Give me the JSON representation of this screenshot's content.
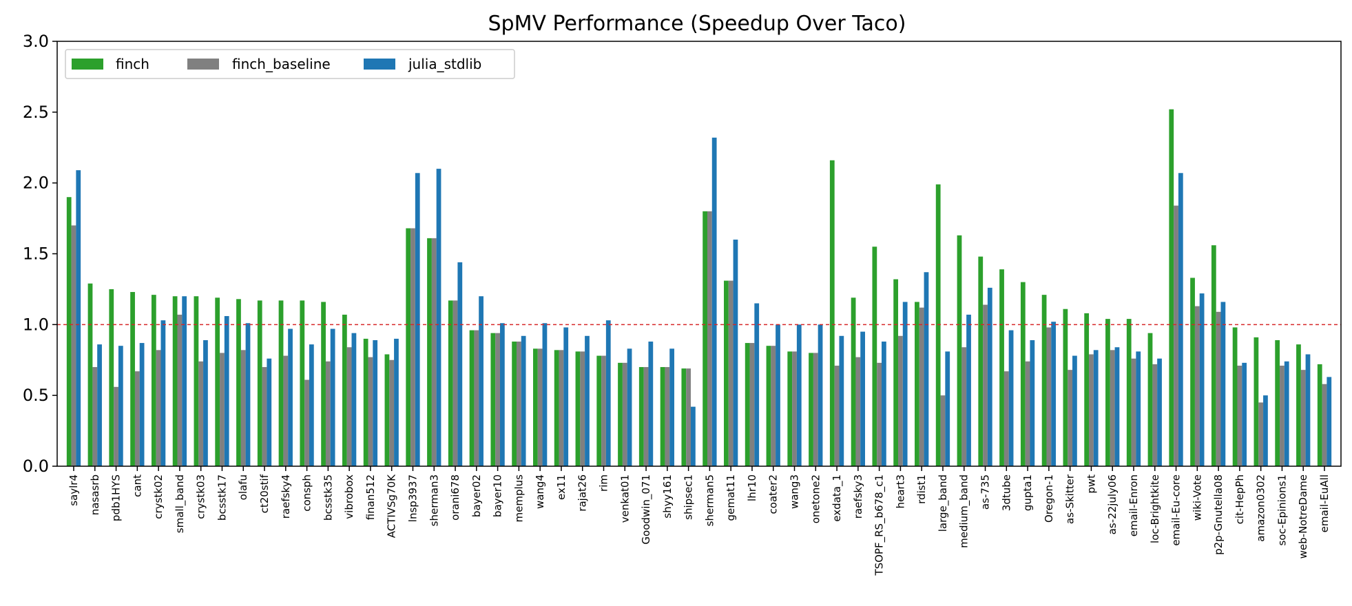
{
  "chart_data": {
    "type": "bar",
    "title": "SpMV Performance (Speedup Over Taco)",
    "xlabel": "",
    "ylabel": "",
    "ylim": [
      0,
      3.0
    ],
    "yticks": [
      "0.0",
      "0.5",
      "1.0",
      "1.5",
      "2.0",
      "2.5",
      "3.0"
    ],
    "reference_line": 1.0,
    "legend_position": "top-left",
    "grid": false,
    "categories": [
      "saylr4",
      "nasasrb",
      "pdb1HYS",
      "cant",
      "crystk02",
      "small_band",
      "crystk03",
      "bcsstk17",
      "olafu",
      "ct20stif",
      "raefsky4",
      "consph",
      "bcsstk35",
      "vibrobox",
      "finan512",
      "ACTIVSg70K",
      "lnsp3937",
      "sherman3",
      "orani678",
      "bayer02",
      "bayer10",
      "memplus",
      "wang4",
      "ex11",
      "rajat26",
      "rim",
      "venkat01",
      "Goodwin_071",
      "shyy161",
      "shipsec1",
      "sherman5",
      "gemat11",
      "lhr10",
      "coater2",
      "wang3",
      "onetone2",
      "exdata_1",
      "raefsky3",
      "TSOPF_RS_b678_c1",
      "heart3",
      "rdist1",
      "large_band",
      "medium_band",
      "as-735",
      "3dtube",
      "gupta1",
      "Oregon-1",
      "as-Skitter",
      "pwt",
      "as-22july06",
      "email-Enron",
      "loc-Brightkite",
      "email-Eu-core",
      "wiki-Vote",
      "p2p-Gnutella08",
      "cit-HepPh",
      "amazon0302",
      "soc-Epinions1",
      "web-NotreDame",
      "email-EuAll"
    ],
    "series": [
      {
        "name": "finch",
        "color": "#2ca02c",
        "values": [
          1.9,
          1.29,
          1.25,
          1.23,
          1.21,
          1.2,
          1.2,
          1.19,
          1.18,
          1.17,
          1.17,
          1.17,
          1.16,
          1.07,
          0.9,
          0.79,
          1.68,
          1.61,
          1.17,
          0.96,
          0.94,
          0.88,
          0.83,
          0.82,
          0.81,
          0.78,
          0.73,
          0.7,
          0.7,
          0.69,
          1.8,
          1.31,
          0.87,
          0.85,
          0.81,
          0.8,
          2.16,
          1.19,
          1.55,
          1.32,
          1.16,
          1.99,
          1.63,
          1.48,
          1.39,
          1.3,
          1.21,
          1.11,
          1.08,
          1.04,
          1.04,
          0.94,
          2.52,
          1.33,
          1.56,
          0.98,
          0.91,
          0.89,
          0.86,
          0.72
        ]
      },
      {
        "name": "finch_baseline",
        "color": "#808080",
        "values": [
          1.7,
          0.7,
          0.56,
          0.67,
          0.82,
          1.07,
          0.74,
          0.8,
          0.82,
          0.7,
          0.78,
          0.61,
          0.74,
          0.84,
          0.77,
          0.75,
          1.68,
          1.61,
          1.17,
          0.96,
          0.94,
          0.88,
          0.83,
          0.82,
          0.81,
          0.78,
          0.73,
          0.7,
          0.7,
          0.69,
          1.8,
          1.31,
          0.87,
          0.85,
          0.81,
          0.8,
          0.71,
          0.77,
          0.73,
          0.92,
          1.12,
          0.5,
          0.84,
          1.14,
          0.67,
          0.74,
          0.98,
          0.68,
          0.79,
          0.82,
          0.76,
          0.72,
          1.84,
          1.13,
          1.09,
          0.71,
          0.45,
          0.71,
          0.68,
          0.58
        ]
      },
      {
        "name": "julia_stdlib",
        "color": "#1f77b4",
        "values": [
          2.09,
          0.86,
          0.85,
          0.87,
          1.03,
          1.2,
          0.89,
          1.06,
          1.01,
          0.76,
          0.97,
          0.86,
          0.97,
          0.94,
          0.89,
          0.9,
          2.07,
          2.1,
          1.44,
          1.2,
          1.01,
          0.92,
          1.01,
          0.98,
          0.92,
          1.03,
          0.83,
          0.88,
          0.83,
          0.42,
          2.32,
          1.6,
          1.15,
          1.0,
          1.0,
          1.0,
          0.92,
          0.95,
          0.88,
          1.16,
          1.37,
          0.81,
          1.07,
          1.26,
          0.96,
          0.89,
          1.02,
          0.78,
          0.82,
          0.84,
          0.81,
          0.76,
          2.07,
          1.22,
          1.16,
          0.73,
          0.5,
          0.74,
          0.79,
          0.63
        ]
      }
    ]
  }
}
